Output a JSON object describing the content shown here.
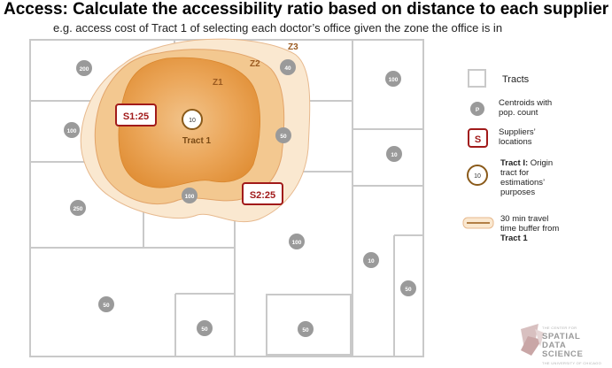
{
  "title": "Access:  Calculate the accessibility ratio based on distance to each supplier",
  "subtitle": "e.g. access cost of Tract 1 of selecting each doctor’s office given the zone the office is in",
  "zones": {
    "z1": "Z1",
    "z2": "Z2",
    "z3": "Z3"
  },
  "tract_label": "Tract 1",
  "origin_value": "10",
  "suppliers": {
    "s1": "S1:25",
    "s2": "S2:25"
  },
  "centroids": [
    "200",
    "40",
    "100",
    "100",
    "50",
    "10",
    "250",
    "100",
    "100",
    "10",
    "50",
    "50",
    "50",
    "50"
  ],
  "legend": {
    "tracts": "Tracts",
    "centroid_symbol": "P",
    "centroid_line1": "Centroids with",
    "centroid_line2": "pop. count",
    "supplier_symbol": "S",
    "supplier_line1": "Suppliers’",
    "supplier_line2": "locations",
    "origin_symbol": "10",
    "origin_bold": "Tract I:",
    "origin_line1": " Origin",
    "origin_line2": "tract for",
    "origin_line3": "estimations’",
    "origin_line4": "purposes",
    "buffer_line1": "30 min travel",
    "buffer_line2": "time buffer from",
    "buffer_bold": "Tract 1"
  },
  "logo": {
    "small": "THE CENTER FOR",
    "line1": "SPATIAL",
    "line2": "DATA",
    "line3": "SCIENCE",
    "small2": "THE UNIVERSITY OF CHICAGO"
  },
  "colors": {
    "tract_border": "#c9c9c9",
    "centroid": "#9a9a9a",
    "supplier": "#a11a1a",
    "z1_fill": "#e8a253",
    "z2_fill": "#f3c890",
    "z3_fill": "#fae8d0",
    "origin_ring": "#8a5a1a"
  }
}
